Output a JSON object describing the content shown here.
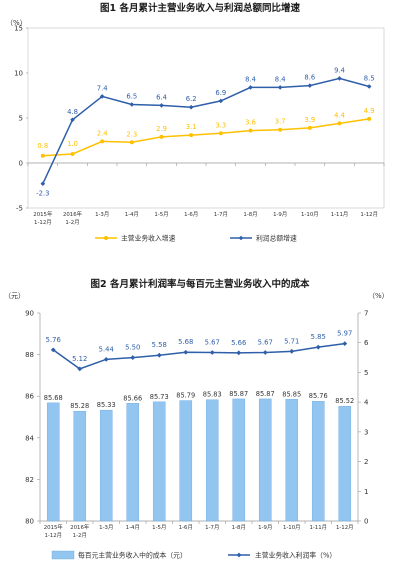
{
  "chart_data": [
    {
      "type": "line",
      "title": "图1  各月累计主营业务收入与利润总额同比增速",
      "ylabel": "（%）",
      "ylim": [
        -5,
        15
      ],
      "yticks": [
        -5,
        0,
        5,
        10,
        15
      ],
      "categories": [
        [
          "2015年",
          "1-12月"
        ],
        [
          "2016年",
          "1-2月"
        ],
        [
          "1-3月"
        ],
        [
          "1-4月"
        ],
        [
          "1-5月"
        ],
        [
          "1-6月"
        ],
        [
          "1-7月"
        ],
        [
          "1-8月"
        ],
        [
          "1-9月"
        ],
        [
          "1-10月"
        ],
        [
          "1-11月"
        ],
        [
          "1-12月"
        ]
      ],
      "series": [
        {
          "name": "主营业务收入增速",
          "color": "#FFC000",
          "marker": "circle",
          "values": [
            0.8,
            1.0,
            2.4,
            2.3,
            2.9,
            3.1,
            3.3,
            3.6,
            3.7,
            3.9,
            4.4,
            4.9
          ],
          "labels": [
            "0.8",
            "1.0",
            "2.4",
            "2.3",
            "2.9",
            "3.1",
            "3.3",
            "3.6",
            "3.7",
            "3.9",
            "4.4",
            "4.9"
          ]
        },
        {
          "name": "利润总额增速",
          "color": "#2E5FA8",
          "marker": "diamond",
          "values": [
            -2.3,
            4.8,
            7.4,
            6.5,
            6.4,
            6.2,
            6.9,
            8.4,
            8.4,
            8.6,
            9.4,
            8.5
          ],
          "labels": [
            "-2.3",
            "4.8",
            "7.4",
            "6.5",
            "6.4",
            "6.2",
            "6.9",
            "8.4",
            "8.4",
            "8.6",
            "9.4",
            "8.5"
          ]
        }
      ],
      "grid": false,
      "legend": "bottom"
    },
    {
      "type": "bar+line",
      "title": "图2  各月累计利润率与每百元主营业务收入中的成本",
      "ylabel_left": "（元）",
      "ylabel_right": "（%）",
      "ylim_left": [
        80,
        90
      ],
      "yticks_left": [
        80,
        82,
        84,
        86,
        88,
        90
      ],
      "ylim_right": [
        0,
        7
      ],
      "yticks_right": [
        0,
        1,
        2,
        3,
        4,
        5,
        6,
        7
      ],
      "categories": [
        [
          "2015年",
          "1-12月"
        ],
        [
          "2016年",
          "1-2月"
        ],
        [
          "1-3月"
        ],
        [
          "1-4月"
        ],
        [
          "1-5月"
        ],
        [
          "1-6月"
        ],
        [
          "1-7月"
        ],
        [
          "1-8月"
        ],
        [
          "1-9月"
        ],
        [
          "1-10月"
        ],
        [
          "1-11月"
        ],
        [
          "1-12月"
        ]
      ],
      "series": [
        {
          "name": "每百元主营业务收入中的成本（元）",
          "type": "bar",
          "axis": "left",
          "color": "#92C5F0",
          "values": [
            85.68,
            85.28,
            85.33,
            85.66,
            85.73,
            85.79,
            85.83,
            85.87,
            85.87,
            85.85,
            85.76,
            85.52
          ],
          "labels": [
            "85.68",
            "85.28",
            "85.33",
            "85.66",
            "85.73",
            "85.79",
            "85.83",
            "85.87",
            "85.87",
            "85.85",
            "85.76",
            "85.52"
          ]
        },
        {
          "name": "主营业务收入利润率（%）",
          "type": "line",
          "axis": "right",
          "color": "#2E5FA8",
          "marker": "diamond",
          "values": [
            5.76,
            5.12,
            5.44,
            5.5,
            5.58,
            5.68,
            5.67,
            5.66,
            5.67,
            5.71,
            5.85,
            5.97
          ],
          "labels": [
            "5.76",
            "5.12",
            "5.44",
            "5.50",
            "5.58",
            "5.68",
            "5.67",
            "5.66",
            "5.67",
            "5.71",
            "5.85",
            "5.97"
          ]
        }
      ],
      "grid": false,
      "legend": "bottom"
    }
  ]
}
